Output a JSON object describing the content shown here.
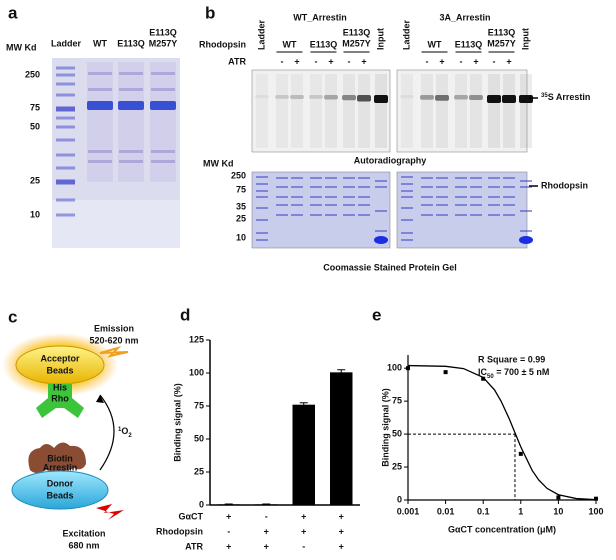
{
  "panel_a": {
    "label": "a",
    "mw_title": "MW Kd",
    "lanes": [
      "Ladder",
      "WT",
      "E113Q",
      [
        "E113Q",
        "M257Y"
      ]
    ],
    "mw_markers": [
      250,
      75,
      50,
      25,
      10
    ]
  },
  "panel_b": {
    "label": "b",
    "groups": [
      "WT_Arrestin",
      "3A_Arrestin"
    ],
    "ladder": "Ladder",
    "rhodopsin_label": "Rhodopsin",
    "atr_label": "ATR",
    "variants": [
      "WT",
      "E113Q",
      [
        "E113Q",
        "M257Y"
      ]
    ],
    "input": "Input",
    "atr_signs": [
      "-",
      "+",
      "-",
      "+",
      "-",
      "+"
    ],
    "arrestin_label": {
      "sup": "35",
      "text": "S Arrestin"
    },
    "autoradiography": "Autoradiography",
    "mw_title": "MW Kd",
    "mw_markers": [
      250,
      75,
      35,
      25,
      10
    ],
    "rhodopsin_band": "Rhodopsin",
    "coomassie": "Coomassie Stained Protein Gel"
  },
  "panel_c": {
    "label": "c",
    "emission": "Emission",
    "emission_range": "520-620 nm",
    "acceptor": [
      "Acceptor",
      "Beads"
    ],
    "his": "His",
    "rho": "Rho",
    "singlet_oxygen": {
      "sup": "1",
      "text": "O",
      "sub": "2"
    },
    "biotin": "Biotin",
    "arrestin": "Arrestin",
    "donor": [
      "Donor",
      "Beads"
    ],
    "excitation": "Excitation",
    "excitation_wavelength": "680 nm"
  },
  "chart_data": [
    {
      "type": "bar",
      "panel_label": "d",
      "y_label": "Binding signal (%)",
      "values": [
        0.5,
        0.5,
        76,
        100.5
      ],
      "errors": [
        0.3,
        0.3,
        1.5,
        2
      ],
      "color": "#000000",
      "ylim": [
        0,
        125
      ],
      "yticks": [
        0,
        25,
        50,
        75,
        100,
        125
      ],
      "conditions": [
        {
          "name": "GαCT",
          "signs": [
            "+",
            "-",
            "+",
            "+"
          ]
        },
        {
          "name": "Rhodopsin",
          "signs": [
            "-",
            "+",
            "+",
            "+"
          ]
        },
        {
          "name": "ATR",
          "signs": [
            "+",
            "+",
            "-",
            "+"
          ]
        }
      ]
    },
    {
      "type": "scatter",
      "panel_label": "e",
      "x_label": "GαCT concentration (μM)",
      "y_label": "Binding signal (%)",
      "log_x": true,
      "xlim": [
        0.001,
        100
      ],
      "xticks": [
        0.001,
        0.01,
        0.1,
        1,
        10,
        100
      ],
      "ylim": [
        0,
        110
      ],
      "yticks": [
        0,
        25,
        50,
        75,
        100
      ],
      "series": [
        {
          "type": "scatter",
          "color": "#000000",
          "x": [
            0.001,
            0.01,
            0.1,
            1,
            10,
            100
          ],
          "values": [
            100,
            97,
            92,
            35,
            2,
            1
          ]
        },
        {
          "type": "line",
          "color": "#000000",
          "x": [
            0.001,
            0.01,
            0.03,
            0.1,
            0.2,
            0.3,
            0.5,
            0.7,
            1,
            2,
            3,
            5,
            10,
            30,
            100
          ],
          "values": [
            102,
            101.4,
            99.7,
            93,
            83.5,
            74.9,
            61.2,
            51,
            40.3,
            22.5,
            15.2,
            8.8,
            4,
            1.1,
            0.3
          ]
        }
      ],
      "annotations": {
        "r_square": "R Square = 0.99",
        "ic50": {
          "text": "IC",
          "sub": "50",
          "rest": " = 700 ± 5 nM"
        }
      },
      "reference_lines": {
        "x": 0.7,
        "y": 50
      }
    }
  ]
}
